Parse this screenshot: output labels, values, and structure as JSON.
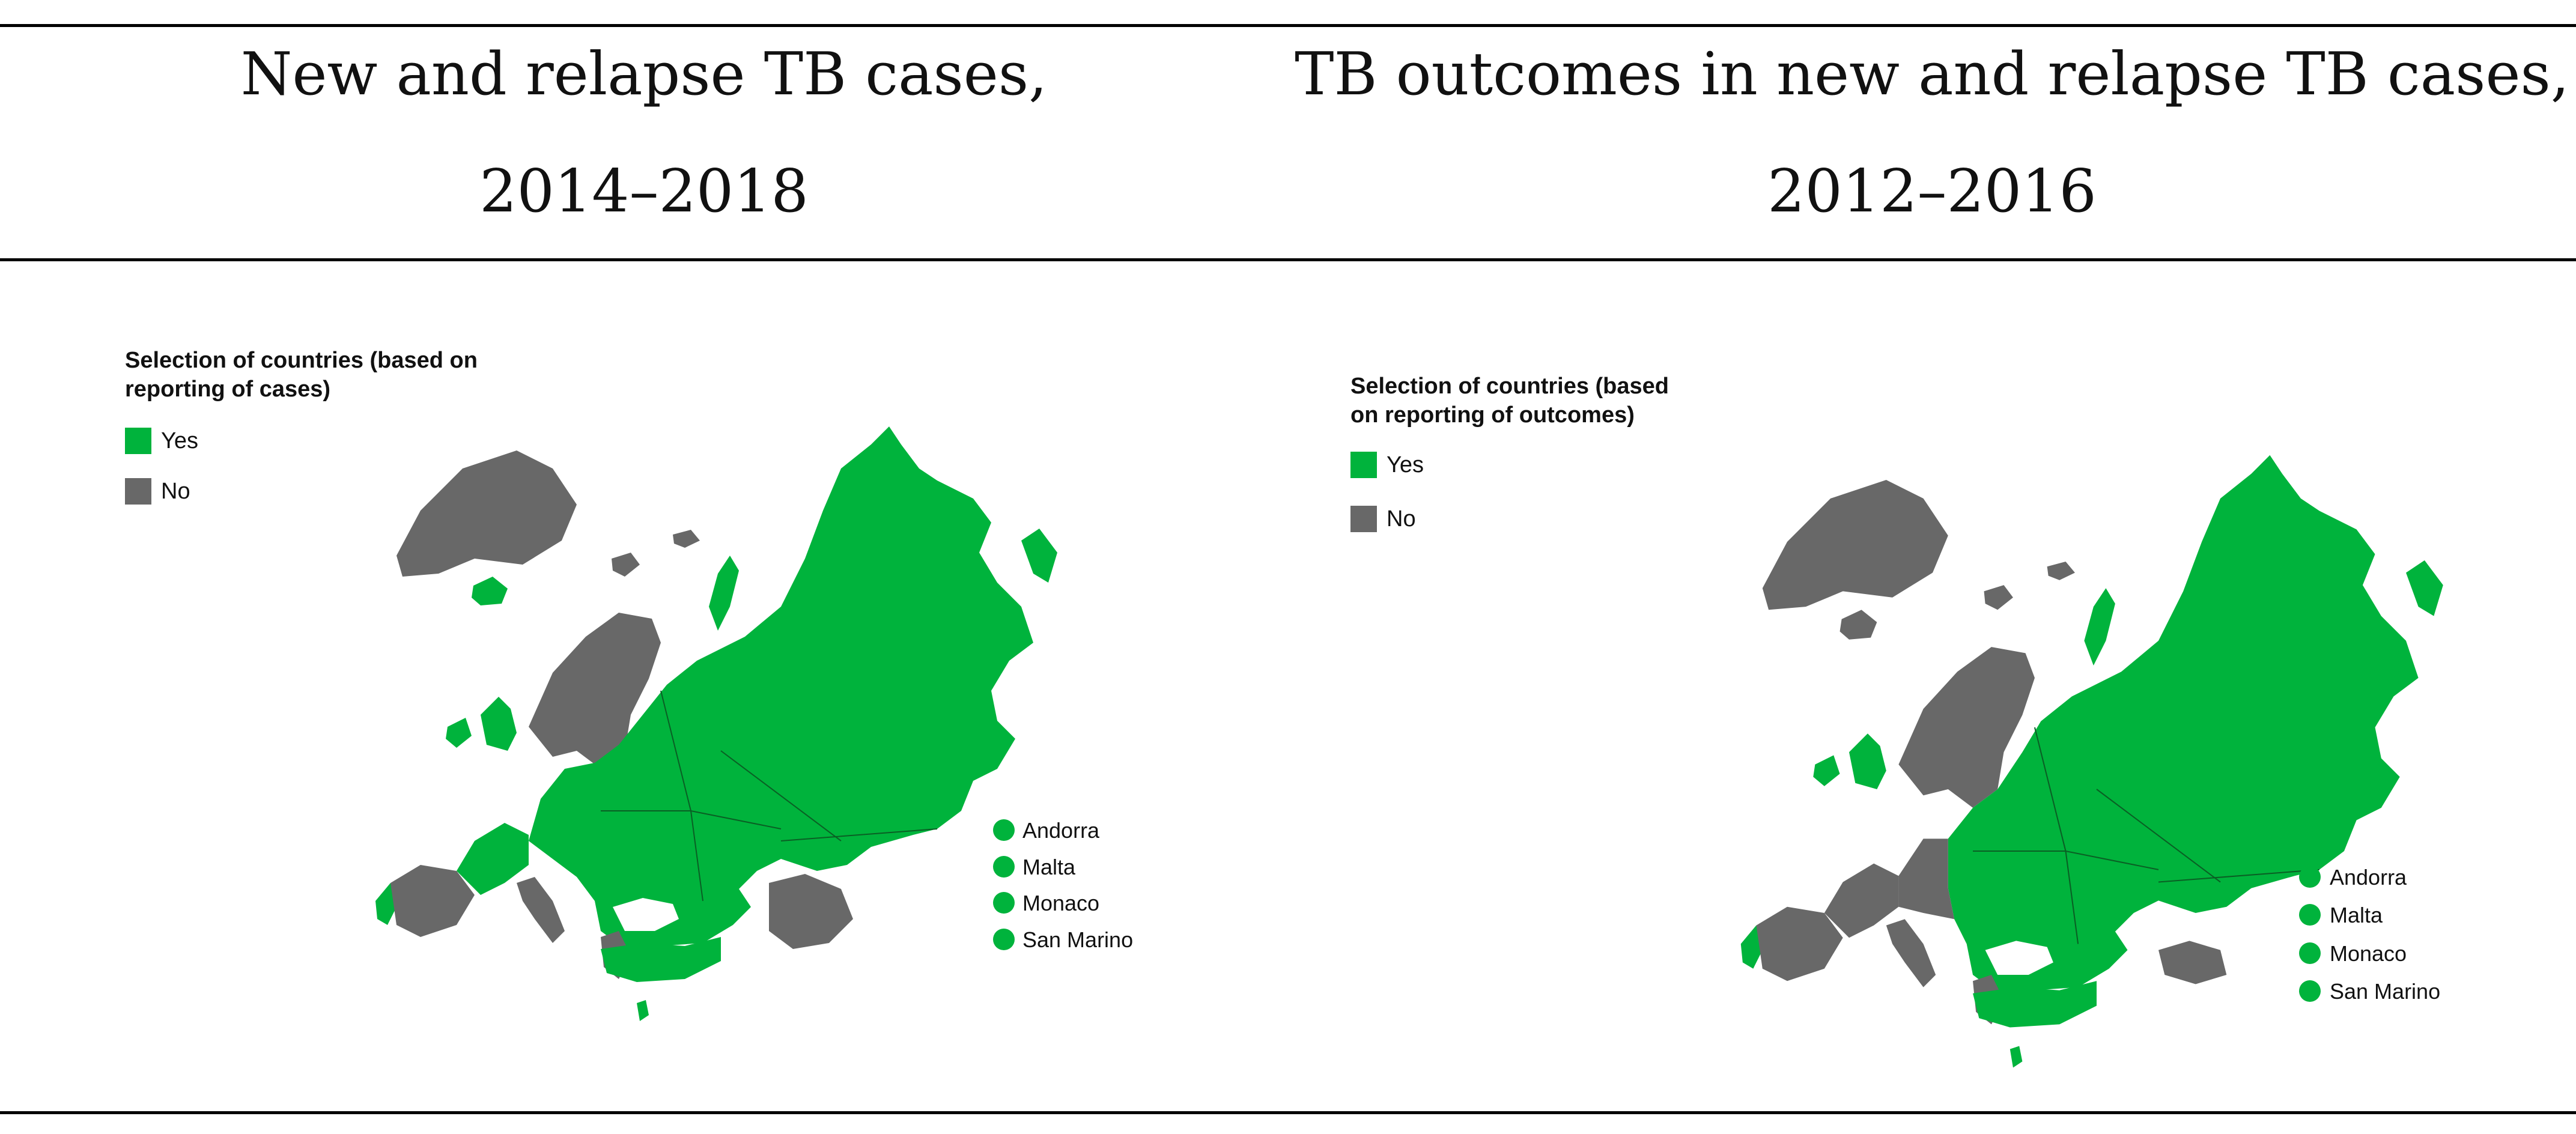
{
  "colors": {
    "yes": "#00b33c",
    "no": "#686868",
    "rule": "#000000"
  },
  "panels": [
    {
      "header": {
        "line1": "New and relapse TB cases,",
        "line2": "2014–2018"
      },
      "legend": {
        "title_line1": "Selection of countries (based on",
        "title_line2": "reporting of cases)",
        "yes": "Yes",
        "no": "No"
      },
      "small_countries": [
        "Andorra",
        "Malta",
        "Monaco",
        "San Marino"
      ]
    },
    {
      "header": {
        "line1": "TB outcomes in new and relapse TB cases,",
        "line2": "2012–2016"
      },
      "legend": {
        "title_line1": "Selection of countries (based",
        "title_line2": "on reporting of outcomes)",
        "yes": "Yes",
        "no": "No"
      },
      "small_countries": [
        "Andorra",
        "Malta",
        "Monaco",
        "San Marino"
      ]
    }
  ]
}
